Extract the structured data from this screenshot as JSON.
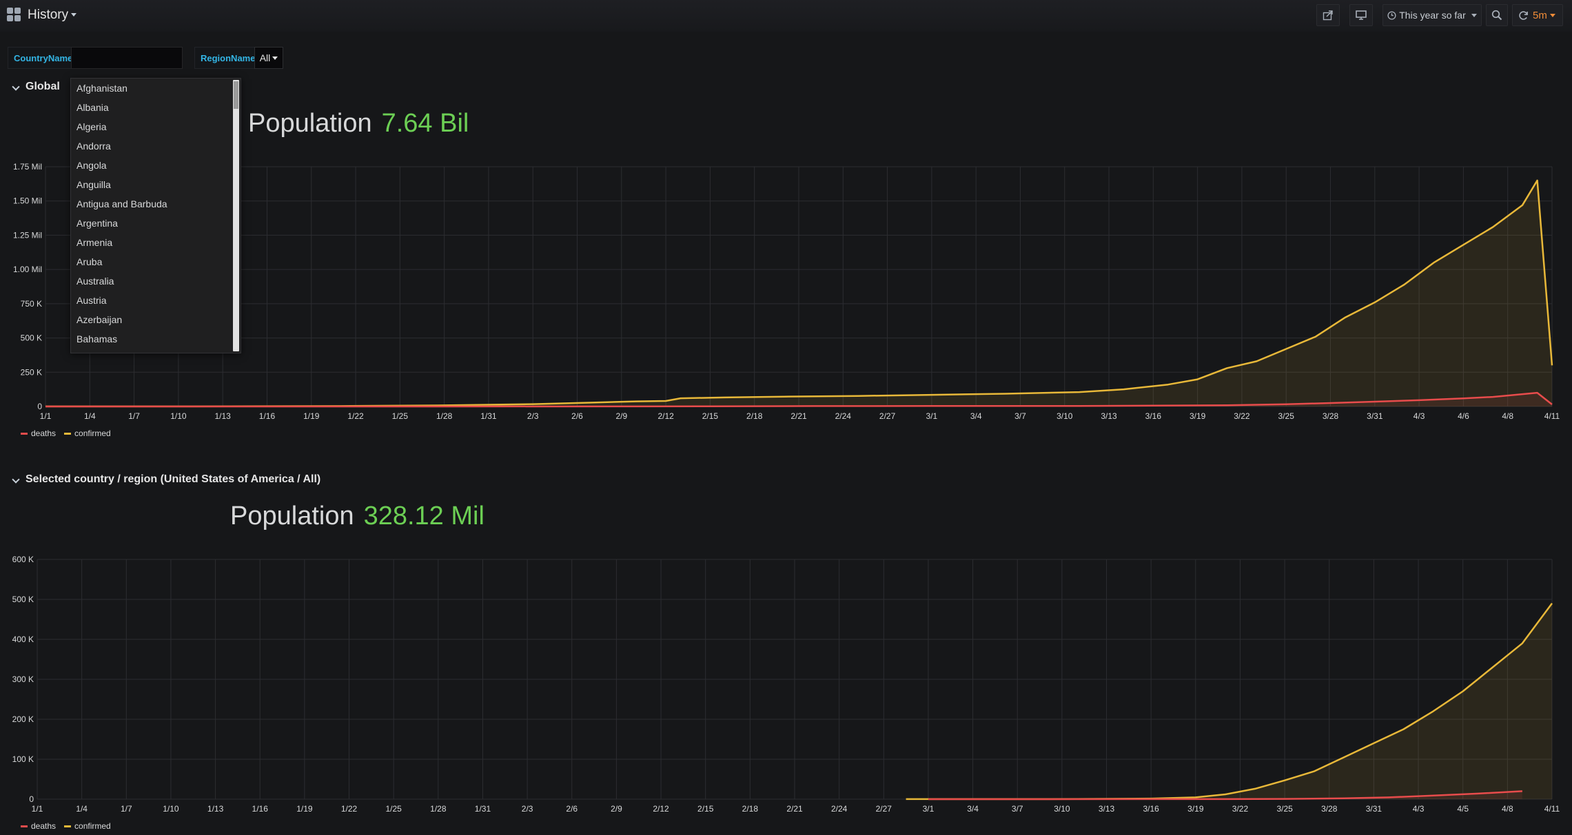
{
  "header": {
    "title": "History",
    "time_range": "This year so far",
    "refresh": "5m"
  },
  "variables": {
    "country_label": "CountryName",
    "country_value": "",
    "region_label": "RegionName",
    "region_value": "All"
  },
  "country_dropdown": {
    "options": [
      "Afghanistan",
      "Albania",
      "Algeria",
      "Andorra",
      "Angola",
      "Anguilla",
      "Antigua and Barbuda",
      "Argentina",
      "Armenia",
      "Aruba",
      "Australia",
      "Austria",
      "Azerbaijan",
      "Bahamas"
    ]
  },
  "global_row": {
    "title": "Global",
    "population_label": "Population",
    "population_value": "7.64 Bil"
  },
  "country_row": {
    "title": "Selected country / region (United States of America / All)",
    "population_label": "Population",
    "population_value": "328.12 Mil"
  },
  "colors": {
    "deaths": "#e84c4c",
    "confirmed": "#e8b839",
    "stat_value": "#6ccf54",
    "accent_label": "#33b5e5"
  },
  "chart_data": [
    {
      "type": "area",
      "title": "",
      "x_ticks": [
        "1/1",
        "1/4",
        "1/7",
        "1/10",
        "1/13",
        "1/16",
        "1/19",
        "1/22",
        "1/25",
        "1/28",
        "1/31",
        "2/3",
        "2/6",
        "2/9",
        "2/12",
        "2/15",
        "2/18",
        "2/21",
        "2/24",
        "2/27",
        "3/1",
        "3/4",
        "3/7",
        "3/10",
        "3/13",
        "3/16",
        "3/19",
        "3/22",
        "3/25",
        "3/28",
        "3/31",
        "4/3",
        "4/6",
        "4/8",
        "4/11"
      ],
      "y_ticks": [
        "0",
        "250 K",
        "500 K",
        "750 K",
        "1.00 Mil",
        "1.25 Mil",
        "1.50 Mil",
        "1.75 Mil"
      ],
      "ylim": [
        0,
        1750000
      ],
      "xlim": [
        0,
        102
      ],
      "grid": true,
      "legend_position": "bottom-left",
      "series": [
        {
          "name": "deaths",
          "points": [
            [
              0,
              0
            ],
            [
              20,
              0
            ],
            [
              40,
              600
            ],
            [
              45,
              1500
            ],
            [
              52,
              2800
            ],
            [
              60,
              3400
            ],
            [
              70,
              4000
            ],
            [
              75,
              6000
            ],
            [
              80,
              9000
            ],
            [
              84,
              16000
            ],
            [
              87,
              25000
            ],
            [
              90,
              35000
            ],
            [
              93,
              46000
            ],
            [
              96,
              59000
            ],
            [
              98,
              70000
            ],
            [
              100,
              90000
            ],
            [
              101,
              100000
            ],
            [
              102,
              15000
            ]
          ]
        },
        {
          "name": "confirmed",
          "points": [
            [
              0,
              550
            ],
            [
              10,
              600
            ],
            [
              20,
              3000
            ],
            [
              27,
              8000
            ],
            [
              33,
              17000
            ],
            [
              37,
              28000
            ],
            [
              40,
              37000
            ],
            [
              42,
              40000
            ],
            [
              43,
              60000
            ],
            [
              46,
              66000
            ],
            [
              50,
              72000
            ],
            [
              55,
              77000
            ],
            [
              60,
              85000
            ],
            [
              65,
              93000
            ],
            [
              70,
              105000
            ],
            [
              73,
              125000
            ],
            [
              76,
              160000
            ],
            [
              78,
              198000
            ],
            [
              80,
              280000
            ],
            [
              82,
              330000
            ],
            [
              84,
              420000
            ],
            [
              86,
              510000
            ],
            [
              88,
              650000
            ],
            [
              90,
              760000
            ],
            [
              92,
              890000
            ],
            [
              94,
              1050000
            ],
            [
              96,
              1180000
            ],
            [
              98,
              1310000
            ],
            [
              100,
              1470000
            ],
            [
              101,
              1650000
            ],
            [
              102,
              300000
            ]
          ]
        }
      ]
    },
    {
      "type": "area",
      "title": "",
      "x_ticks": [
        "1/1",
        "1/4",
        "1/7",
        "1/10",
        "1/13",
        "1/16",
        "1/19",
        "1/22",
        "1/25",
        "1/28",
        "1/31",
        "2/3",
        "2/6",
        "2/9",
        "2/12",
        "2/15",
        "2/18",
        "2/21",
        "2/24",
        "2/27",
        "3/1",
        "3/4",
        "3/7",
        "3/10",
        "3/13",
        "3/16",
        "3/19",
        "3/22",
        "3/25",
        "3/28",
        "3/31",
        "4/3",
        "4/5",
        "4/8",
        "4/11"
      ],
      "y_ticks": [
        "0",
        "100 K",
        "200 K",
        "300 K",
        "400 K",
        "500 K",
        "600 K"
      ],
      "ylim": [
        0,
        600000
      ],
      "xlim": [
        0,
        102
      ],
      "grid": true,
      "legend_position": "bottom-left",
      "series": [
        {
          "name": "deaths",
          "points": [
            [
              60,
              0
            ],
            [
              75,
              100
            ],
            [
              80,
              200
            ],
            [
              84,
              700
            ],
            [
              88,
              2000
            ],
            [
              91,
              4500
            ],
            [
              94,
              9000
            ],
            [
              97,
              14000
            ],
            [
              100,
              20000
            ]
          ]
        },
        {
          "name": "confirmed",
          "points": [
            [
              58.5,
              100
            ],
            [
              65,
              200
            ],
            [
              70,
              400
            ],
            [
              75,
              1500
            ],
            [
              78,
              4500
            ],
            [
              80,
              12000
            ],
            [
              82,
              26000
            ],
            [
              84,
              47000
            ],
            [
              86,
              70000
            ],
            [
              88,
              105000
            ],
            [
              90,
              140000
            ],
            [
              92,
              175000
            ],
            [
              94,
              220000
            ],
            [
              96,
              270000
            ],
            [
              97,
              300000
            ],
            [
              98,
              330000
            ],
            [
              99,
              360000
            ],
            [
              100,
              390000
            ],
            [
              102,
              490000
            ]
          ]
        }
      ]
    }
  ]
}
